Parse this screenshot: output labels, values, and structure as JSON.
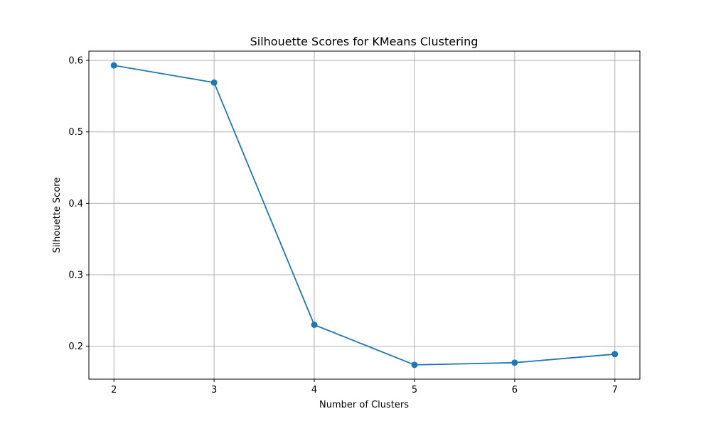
{
  "chart_data": {
    "type": "line",
    "title": "Silhouette Scores for KMeans Clustering",
    "xlabel": "Number of Clusters",
    "ylabel": "Silhouette Score",
    "x": [
      2,
      3,
      4,
      5,
      6,
      7
    ],
    "xticks": [
      "2",
      "3",
      "4",
      "5",
      "6",
      "7"
    ],
    "yticks": [
      "0.2",
      "0.3",
      "0.4",
      "0.5",
      "0.6"
    ],
    "xlim": [
      1.75,
      7.25
    ],
    "ylim": [
      0.154,
      0.613
    ],
    "grid": true,
    "series": [
      {
        "values": [
          0.593,
          0.569,
          0.23,
          0.174,
          0.177,
          0.189
        ],
        "color": "#1f77b4",
        "marker": "circle"
      }
    ]
  }
}
